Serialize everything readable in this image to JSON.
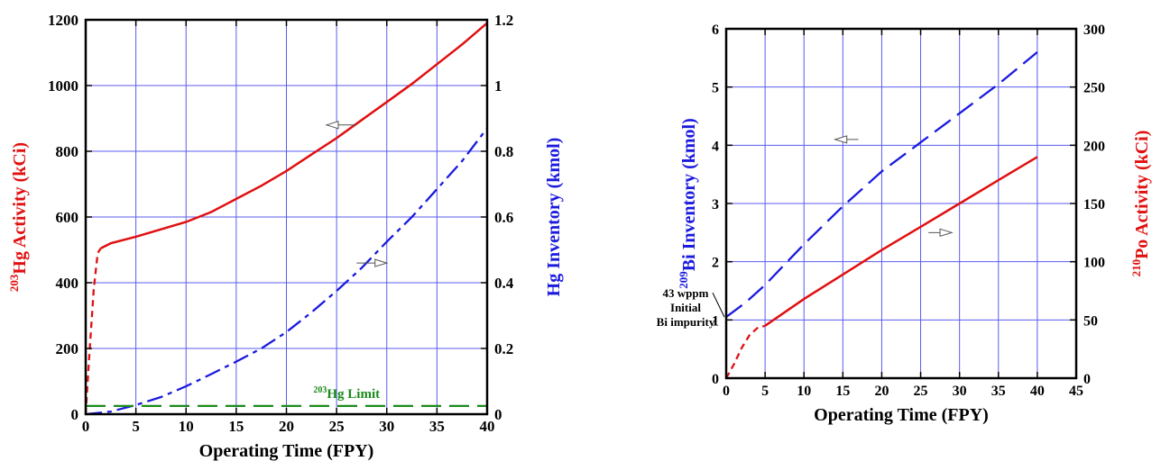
{
  "colors": {
    "red": "#e01010",
    "blue": "#1a1adf",
    "green": "#1a8a1a",
    "grid": "#5b5bf0",
    "frame": "#000000"
  },
  "chart_data": [
    {
      "type": "line",
      "xlabel": "Operating Time (FPY)",
      "ylabel_left": {
        "sup": "203",
        "text": "Hg Activity (kCi)"
      },
      "ylabel_right": "Hg Inventory (kmol)",
      "xlim": [
        0,
        40
      ],
      "ylim_left": [
        0,
        1200
      ],
      "ylim_right": [
        0,
        1.2
      ],
      "x_ticks": [
        "0",
        "5",
        "10",
        "15",
        "20",
        "25",
        "30",
        "35",
        "40"
      ],
      "y_ticks_left": [
        "0",
        "200",
        "400",
        "600",
        "800",
        "1000",
        "1200"
      ],
      "y_ticks_right": [
        "0",
        "0.2",
        "0.4",
        "0.6",
        "0.8",
        "1",
        "1.2"
      ],
      "grid": true,
      "series": [
        {
          "axis": "left",
          "color": "red",
          "style": "dashed",
          "points": [
            [
              0,
              0
            ],
            [
              0.3,
              150
            ],
            [
              0.8,
              380
            ],
            [
              1.2,
              490
            ],
            [
              1.5,
              505
            ]
          ]
        },
        {
          "axis": "left",
          "color": "red",
          "style": "solid",
          "points": [
            [
              1.5,
              505
            ],
            [
              2.5,
              520
            ],
            [
              5,
              540
            ],
            [
              10,
              585
            ],
            [
              12.5,
              615
            ],
            [
              15,
              655
            ],
            [
              17.5,
              695
            ],
            [
              20,
              740
            ],
            [
              22.5,
              790
            ],
            [
              25,
              840
            ],
            [
              27.5,
              895
            ],
            [
              30,
              950
            ],
            [
              32.5,
              1005
            ],
            [
              35,
              1065
            ],
            [
              37.5,
              1125
            ],
            [
              40,
              1190
            ]
          ]
        },
        {
          "axis": "right",
          "color": "blue",
          "style": "dashdot",
          "points": [
            [
              0,
              0
            ],
            [
              2.5,
              0.008
            ],
            [
              5,
              0.028
            ],
            [
              7.5,
              0.052
            ],
            [
              10,
              0.085
            ],
            [
              12.5,
              0.122
            ],
            [
              15,
              0.16
            ],
            [
              17.5,
              0.2
            ],
            [
              20,
              0.25
            ],
            [
              22.5,
              0.31
            ],
            [
              25,
              0.375
            ],
            [
              27.5,
              0.445
            ],
            [
              30,
              0.525
            ],
            [
              32.5,
              0.6
            ],
            [
              35,
              0.685
            ],
            [
              37.5,
              0.77
            ],
            [
              40,
              0.87
            ]
          ]
        },
        {
          "axis": "left",
          "color": "green",
          "style": "longdash",
          "points": [
            [
              0,
              25
            ],
            [
              40,
              25
            ]
          ]
        }
      ],
      "arrows": [
        {
          "from": [
            27,
            880
          ],
          "to": [
            24,
            880
          ],
          "axis": "left"
        },
        {
          "from": [
            27,
            0.46
          ],
          "to": [
            30,
            0.46
          ],
          "axis": "right"
        }
      ],
      "limit_label": {
        "sup": "203",
        "text": "Hg Limit",
        "x": 26,
        "y": 50
      }
    },
    {
      "type": "line",
      "xlabel": "Operating Time (FPY)",
      "ylabel_left": {
        "sup": "209",
        "text": "Bi Inventory (kmol)"
      },
      "ylabel_right": {
        "sup": "210",
        "text": "Po Activity (kCi)"
      },
      "xlim": [
        0,
        45
      ],
      "ylim_left": [
        0,
        6
      ],
      "ylim_right": [
        0,
        300
      ],
      "x_ticks": [
        "0",
        "5",
        "10",
        "15",
        "20",
        "25",
        "30",
        "35",
        "40",
        "45"
      ],
      "y_ticks_left": [
        "0",
        "1",
        "2",
        "3",
        "4",
        "5",
        "6"
      ],
      "y_ticks_right": [
        "0",
        "50",
        "100",
        "150",
        "200",
        "250",
        "300"
      ],
      "grid": true,
      "series": [
        {
          "axis": "left",
          "color": "blue",
          "style": "longdash",
          "points": [
            [
              0,
              1.05
            ],
            [
              2.5,
              1.3
            ],
            [
              5,
              1.6
            ],
            [
              10,
              2.3
            ],
            [
              15,
              2.95
            ],
            [
              20,
              3.55
            ],
            [
              25,
              4.05
            ],
            [
              30,
              4.55
            ],
            [
              35,
              5.05
            ],
            [
              40,
              5.6
            ]
          ]
        },
        {
          "axis": "right",
          "color": "red",
          "style": "dashed",
          "points": [
            [
              0,
              0
            ],
            [
              1,
              12
            ],
            [
              2,
              26
            ],
            [
              3,
              37
            ],
            [
              4,
              43
            ],
            [
              5,
              45
            ]
          ]
        },
        {
          "axis": "right",
          "color": "red",
          "style": "solid",
          "points": [
            [
              5,
              45
            ],
            [
              10,
              68
            ],
            [
              15,
              89
            ],
            [
              20,
              110
            ],
            [
              25,
              130
            ],
            [
              30,
              150
            ],
            [
              35,
              170
            ],
            [
              40,
              190
            ]
          ]
        }
      ],
      "arrows": [
        {
          "from": [
            17,
            4.1
          ],
          "to": [
            14,
            4.1
          ],
          "axis": "left"
        },
        {
          "from": [
            26,
            2.5
          ],
          "to": [
            29,
            2.5
          ],
          "axis": "left"
        }
      ],
      "annotation": [
        "43 wppm",
        "Initial",
        "Bi impurity"
      ]
    }
  ]
}
